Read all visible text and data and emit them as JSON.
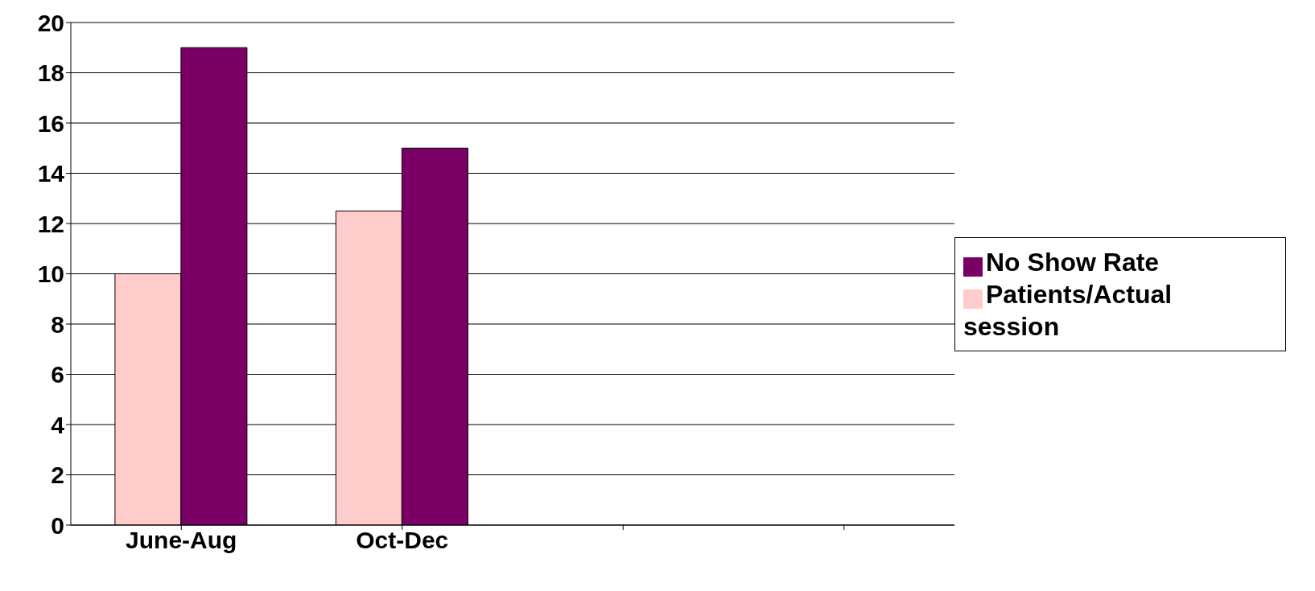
{
  "chart_data": {
    "type": "bar",
    "categories": [
      "June-Aug",
      "Oct-Dec",
      null,
      null
    ],
    "series": [
      {
        "name": "Patients/Actual session",
        "color": "#ffcccc",
        "values": [
          10,
          12.5,
          null,
          null
        ]
      },
      {
        "name": "No Show Rate",
        "color": "#7a0066",
        "values": [
          19,
          15,
          null,
          null
        ]
      }
    ],
    "ylim": [
      0,
      20
    ],
    "yticks": [
      0,
      2,
      4,
      6,
      8,
      10,
      12,
      14,
      16,
      18,
      20
    ],
    "grid": "y",
    "legend": "right"
  }
}
